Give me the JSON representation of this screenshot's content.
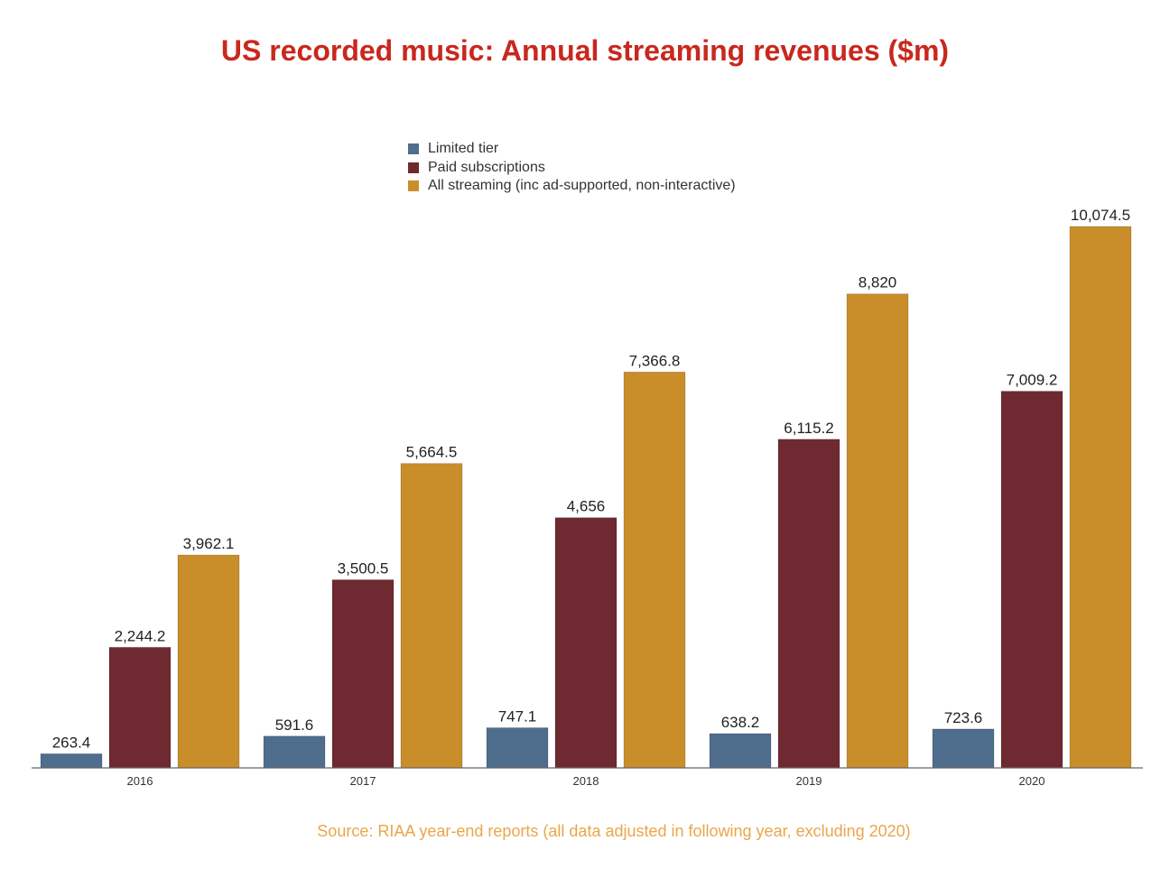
{
  "chart_data": {
    "type": "bar",
    "title": "US recorded music: Annual streaming revenues ($m)",
    "categories": [
      "2016",
      "2017",
      "2018",
      "2019",
      "2020"
    ],
    "series": [
      {
        "name": "Limited tier",
        "color": "#4f6d8c",
        "values": [
          263.4,
          591.6,
          747.1,
          638.2,
          723.6
        ],
        "labels": [
          "263.4",
          "591.6",
          "747.1",
          "638.2",
          "723.6"
        ]
      },
      {
        "name": "Paid subscriptions",
        "color": "#6e2a30",
        "values": [
          2244.2,
          3500.5,
          4656,
          6115.2,
          7009.2
        ],
        "labels": [
          "2,244.2",
          "3,500.5",
          "4,656",
          "6,115.2",
          "7,009.2"
        ]
      },
      {
        "name": "All streaming (inc ad-supported, non-interactive)",
        "color": "#c98e2a",
        "values": [
          3962.1,
          5664.5,
          7366.8,
          8820,
          10074.5
        ],
        "labels": [
          "3,962.1",
          "5,664.5",
          "7,366.8",
          "8,820",
          "10,074.5"
        ]
      }
    ],
    "ylim": [
      0,
      10074.5
    ],
    "grid": false,
    "legend_position": "top-center",
    "source": "Source: RIAA year-end reports (all data adjusted in following year, excluding 2020)"
  },
  "colors": {
    "title": "#c8281e",
    "source": "#eaa64a"
  }
}
